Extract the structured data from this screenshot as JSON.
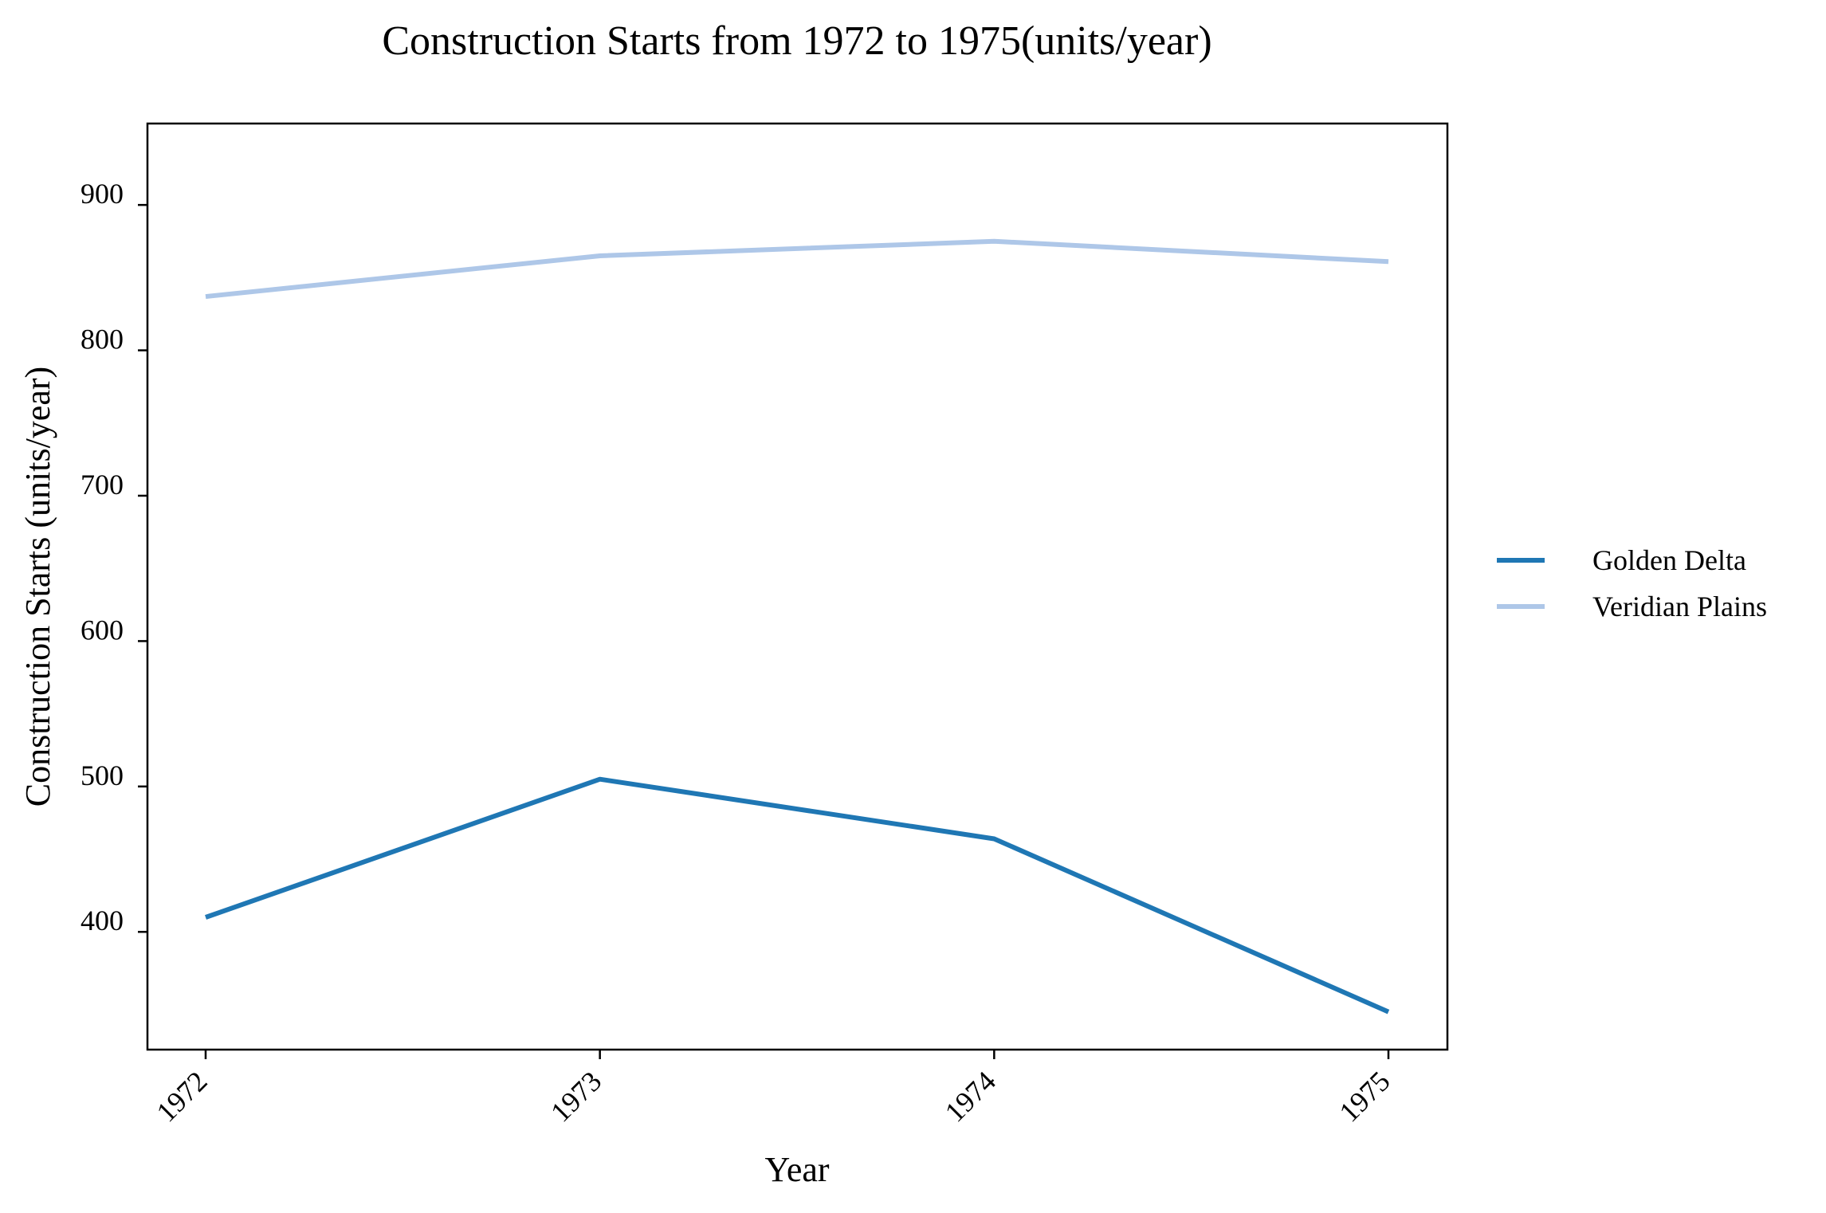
{
  "chart_data": {
    "type": "line",
    "title": "Construction Starts from 1972 to 1975(units/year)",
    "xlabel": "Year",
    "ylabel": "Construction Starts (units/year)",
    "x": [
      1972,
      1973,
      1974,
      1975
    ],
    "x_tick_labels": [
      "1972",
      "1973",
      "1974",
      "1975"
    ],
    "y_ticks": [
      400,
      500,
      600,
      700,
      800,
      900
    ],
    "ylim": [
      319,
      956
    ],
    "grid": false,
    "legend_position": "right",
    "series": [
      {
        "name": "Golden Delta",
        "color": "#1f77b4",
        "values": [
          410,
          505,
          464,
          345
        ]
      },
      {
        "name": "Veridian Plains",
        "color": "#aec7e8",
        "values": [
          837,
          865,
          875,
          861
        ]
      }
    ]
  }
}
